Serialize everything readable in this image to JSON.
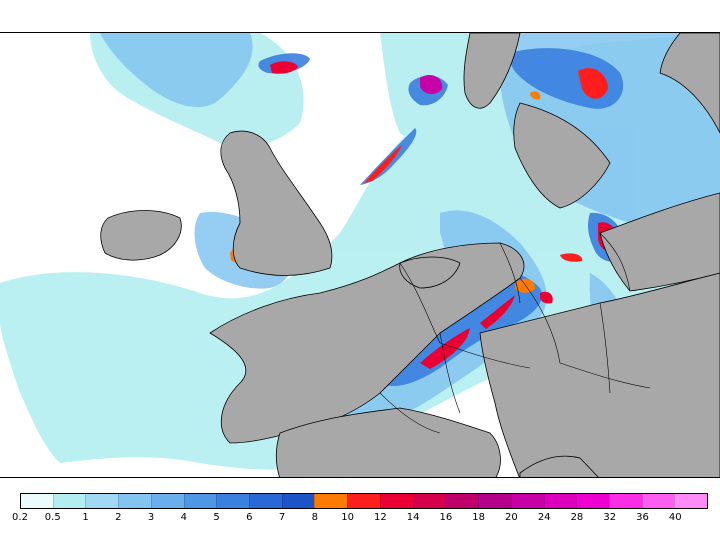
{
  "map": {
    "description_layers": [
      "precipitation-shading",
      "land-mask",
      "coastlines",
      "borders"
    ],
    "colors": {
      "sea": "#ffffff",
      "land": "#a8a8a8",
      "coast": "#000000"
    }
  },
  "legend": {
    "colors": [
      "#eafcfc",
      "#b2eef0",
      "#a0d8f5",
      "#84c4f0",
      "#6aaeec",
      "#5096e6",
      "#3a80df",
      "#2a68d6",
      "#1c54c8",
      "#ff7a00",
      "#ff1e1e",
      "#ea0032",
      "#d4004a",
      "#c0006a",
      "#b4008a",
      "#c800a8",
      "#dc00bc",
      "#ee00d0",
      "#fb2ee6",
      "#ff5cf0",
      "#ff8cf6"
    ],
    "labels": [
      "0.2",
      "0.5",
      "1",
      "2",
      "3",
      "4",
      "5",
      "6",
      "7",
      "8",
      "10",
      "12",
      "14",
      "16",
      "18",
      "20",
      "24",
      "28",
      "32",
      "36",
      "40"
    ]
  }
}
